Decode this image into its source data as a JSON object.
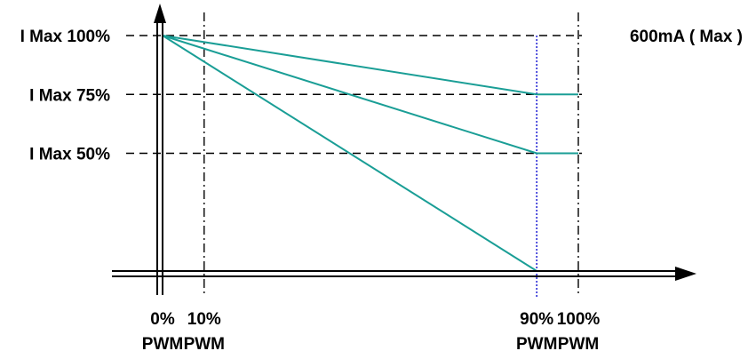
{
  "chart_data": {
    "type": "line",
    "title": "",
    "xlabel": "",
    "ylabel": "",
    "y_unit_note": "600mA ( Max )",
    "x_ticks": [
      {
        "value": 0,
        "line1": "0%",
        "line2": "PWM"
      },
      {
        "value": 10,
        "line1": "10%",
        "line2": "PWM"
      },
      {
        "value": 90,
        "line1": "90%",
        "line2": "PWM"
      },
      {
        "value": 100,
        "line1": "100%",
        "line2": "PWM"
      }
    ],
    "y_ticks": [
      {
        "value": 100,
        "label": "I Max 100%"
      },
      {
        "value": 75,
        "label": "I Max 75%"
      },
      {
        "value": 50,
        "label": "I Max 50%"
      }
    ],
    "xlim": [
      0,
      100
    ],
    "ylim": [
      0,
      100
    ],
    "series": [
      {
        "x": [
          0,
          90,
          100
        ],
        "y": [
          100,
          75,
          75
        ]
      },
      {
        "x": [
          0,
          90,
          100
        ],
        "y": [
          100,
          50,
          50
        ]
      },
      {
        "x": [
          0,
          90,
          100
        ],
        "y": [
          100,
          0,
          0
        ]
      }
    ],
    "colors": {
      "series": "#1a9e96",
      "axis": "#000000",
      "guide": "#000000",
      "highlight_guide": "#2b2bd6"
    }
  }
}
